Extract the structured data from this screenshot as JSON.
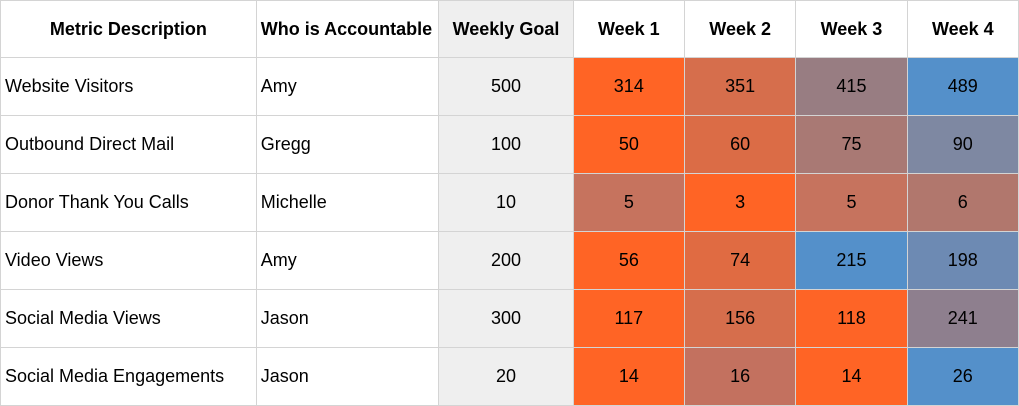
{
  "headers": {
    "metric": "Metric Description",
    "owner": "Who is Accountable",
    "goal": "Weekly Goal",
    "weeks": [
      "Week 1",
      "Week 2",
      "Week 3",
      "Week 4"
    ]
  },
  "rows": [
    {
      "metric": "Website Visitors",
      "owner": "Amy",
      "goal": "500",
      "weeks": [
        "314",
        "351",
        "415",
        "489"
      ],
      "colors": [
        "#FF6425",
        "#D66E4C",
        "#987D82",
        "#5490CA"
      ]
    },
    {
      "metric": "Outbound Direct Mail",
      "owner": "Gregg",
      "goal": "100",
      "weeks": [
        "50",
        "60",
        "75",
        "90"
      ],
      "colors": [
        "#FF6425",
        "#DB6C46",
        "#A97974",
        "#7E88A2"
      ]
    },
    {
      "metric": "Donor Thank You Calls",
      "owner": "Michelle",
      "goal": "10",
      "weeks": [
        "5",
        "3",
        "5",
        "6"
      ],
      "colors": [
        "#C6735E",
        "#FF6425",
        "#C6735E",
        "#B1776D"
      ]
    },
    {
      "metric": "Video Views",
      "owner": "Amy",
      "goal": "200",
      "weeks": [
        "56",
        "74",
        "215",
        "198"
      ],
      "colors": [
        "#FF6425",
        "#E06B42",
        "#5490CA",
        "#6D8AB3"
      ]
    },
    {
      "metric": "Social Media Views",
      "owner": "Jason",
      "goal": "300",
      "weeks": [
        "117",
        "156",
        "118",
        "241"
      ],
      "colors": [
        "#FF6425",
        "#D66E4C",
        "#FE6426",
        "#8E7F8E"
      ]
    },
    {
      "metric": "Social Media Engagements",
      "owner": "Jason",
      "goal": "20",
      "weeks": [
        "14",
        "16",
        "14",
        "26"
      ],
      "colors": [
        "#FF6425",
        "#C3715F",
        "#FF6425",
        "#5490CA"
      ]
    }
  ]
}
